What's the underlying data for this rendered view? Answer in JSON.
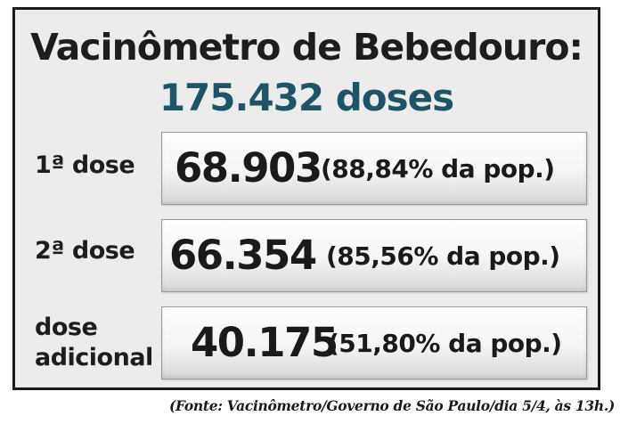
{
  "title": "Vacinômetro de Bebedouro:",
  "total": "175.432 doses",
  "rows": [
    {
      "label_line1": "1ª dose",
      "label_line2": "",
      "value": "68.903",
      "percent": "(88,84% da pop.)"
    },
    {
      "label_line1": "2ª dose",
      "label_line2": "",
      "value": "66.354",
      "percent": "(85,56% da pop.)"
    },
    {
      "label_line1": "dose",
      "label_line2": "adicional",
      "value": "40.175",
      "percent": "(51,80% da pop.)"
    }
  ],
  "source": "(Fonte: Vacinômetro/Governo de São Paulo/dia 5/4, às 13h.)",
  "colors": {
    "title": "#1d1d1d",
    "total": "#1e5466",
    "panel_background": "#ececec",
    "border": "#1a1a1a"
  }
}
